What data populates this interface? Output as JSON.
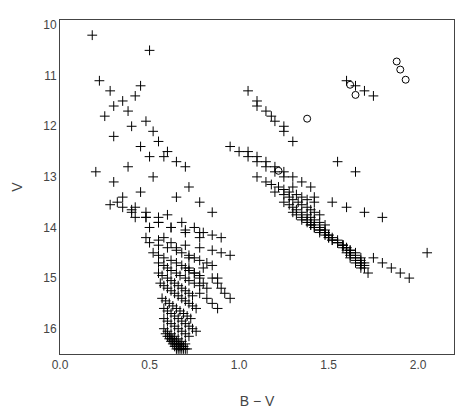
{
  "chart_data": {
    "type": "scatter",
    "xlabel": "B − V",
    "ylabel": "V",
    "xlim": [
      0.0,
      2.2
    ],
    "ylim": [
      16.5,
      9.9
    ],
    "xticks": [
      {
        "value": 0.0,
        "label": "0.0"
      },
      0.5,
      {
        "value": 1.0,
        "label": "1.0"
      },
      1.5,
      {
        "value": 2.0,
        "label": "2.0"
      }
    ],
    "yticks": [
      10,
      11,
      12,
      13,
      14,
      15,
      16
    ],
    "grid": false,
    "series": [
      {
        "marker": "plus",
        "color": "black",
        "x": [
          0.18,
          0.5,
          0.22,
          0.28,
          0.35,
          0.38,
          0.25,
          0.3,
          0.42,
          0.45,
          0.48,
          0.52,
          0.3,
          0.4,
          0.45,
          0.5,
          0.55,
          0.6,
          0.65,
          0.7,
          0.2,
          0.3,
          0.38,
          0.45,
          0.52,
          0.58,
          0.65,
          0.72,
          0.78,
          0.85,
          0.28,
          0.35,
          0.42,
          0.48,
          0.55,
          0.6,
          0.68,
          0.75,
          0.8,
          0.32,
          0.4,
          0.48,
          0.55,
          0.62,
          0.7,
          0.78,
          0.4,
          0.48,
          0.55,
          0.62,
          0.7,
          0.78,
          0.85,
          0.9,
          0.48,
          0.55,
          0.62,
          0.7,
          0.78,
          0.85,
          0.9,
          0.95,
          0.5,
          0.55,
          0.6,
          0.65,
          0.68,
          0.72,
          0.75,
          0.78,
          0.82,
          0.85,
          0.52,
          0.55,
          0.58,
          0.62,
          0.65,
          0.68,
          0.7,
          0.72,
          0.75,
          0.78,
          0.55,
          0.58,
          0.6,
          0.62,
          0.65,
          0.67,
          0.7,
          0.72,
          0.75,
          0.78,
          0.55,
          0.57,
          0.6,
          0.62,
          0.64,
          0.66,
          0.68,
          0.7,
          0.72,
          0.74,
          0.56,
          0.58,
          0.6,
          0.62,
          0.64,
          0.66,
          0.68,
          0.7,
          0.72,
          0.74,
          0.76,
          0.57,
          0.59,
          0.61,
          0.63,
          0.65,
          0.67,
          0.69,
          0.71,
          0.73,
          0.58,
          0.6,
          0.62,
          0.64,
          0.66,
          0.68,
          0.7,
          0.72,
          0.74,
          0.76,
          0.58,
          0.6,
          0.62,
          0.64,
          0.66,
          0.68,
          0.7,
          0.72,
          0.58,
          0.6,
          0.62,
          0.64,
          0.66,
          0.68,
          0.7,
          0.59,
          0.61,
          0.63,
          0.65,
          0.67,
          0.69,
          0.71,
          0.6,
          0.62,
          0.64,
          0.66,
          0.68,
          0.7,
          0.61,
          0.63,
          0.65,
          0.67,
          0.69,
          0.62,
          0.64,
          0.66,
          0.68,
          0.63,
          0.65,
          0.67,
          0.64,
          0.66,
          0.65,
          0.72,
          0.75,
          0.78,
          0.8,
          0.82,
          0.78,
          0.82,
          0.85,
          0.88,
          0.85,
          0.88,
          0.9,
          0.92,
          0.95,
          0.35,
          0.42,
          0.5,
          0.58,
          0.65,
          0.72,
          0.8,
          0.88,
          1.05,
          1.1,
          1.15,
          1.2,
          1.25,
          1.3,
          1.05,
          1.1,
          1.15,
          1.2,
          1.25,
          1.3,
          1.35,
          1.4,
          1.1,
          1.15,
          1.18,
          1.22,
          1.25,
          1.28,
          1.32,
          1.35,
          1.38,
          1.42,
          1.2,
          1.25,
          1.28,
          1.3,
          1.33,
          1.35,
          1.38,
          1.4,
          1.42,
          1.45,
          1.25,
          1.28,
          1.3,
          1.32,
          1.35,
          1.38,
          1.4,
          1.42,
          1.45,
          1.48,
          1.3,
          1.32,
          1.35,
          1.38,
          1.4,
          1.42,
          1.45,
          1.48,
          1.35,
          1.38,
          1.4,
          1.42,
          1.45,
          1.48,
          1.5,
          1.4,
          1.42,
          1.45,
          1.48,
          1.5,
          1.52,
          1.55,
          1.45,
          1.48,
          1.5,
          1.52,
          1.55,
          1.58,
          1.5,
          1.52,
          1.55,
          1.58,
          1.6,
          1.62,
          1.55,
          1.58,
          1.6,
          1.62,
          1.65,
          1.58,
          1.6,
          1.62,
          1.65,
          1.68,
          1.6,
          1.62,
          1.65,
          1.68,
          1.7,
          1.62,
          1.65,
          1.68,
          1.7,
          1.65,
          1.68,
          1.7,
          1.68,
          1.72,
          1.6,
          1.65,
          1.7,
          1.75,
          1.3,
          1.42,
          1.52,
          1.6,
          1.7,
          1.8,
          1.75,
          1.8,
          1.85,
          1.9,
          1.95,
          2.05,
          1.55,
          1.65,
          1.1,
          1.18,
          1.25,
          0.95,
          1.0,
          1.05,
          1.1,
          1.15,
          1.2,
          1.25
        ],
        "values": [
          10.2,
          10.5,
          11.1,
          11.3,
          11.5,
          11.7,
          11.8,
          11.6,
          11.4,
          11.2,
          11.9,
          12.1,
          12.2,
          12.0,
          12.4,
          12.6,
          12.3,
          12.5,
          12.7,
          12.8,
          12.9,
          13.1,
          12.8,
          13.3,
          13.0,
          12.6,
          13.4,
          13.2,
          13.5,
          13.7,
          13.55,
          13.4,
          13.6,
          13.7,
          13.8,
          13.75,
          13.9,
          14.0,
          14.1,
          13.5,
          13.65,
          13.8,
          13.9,
          14.0,
          14.1,
          14.2,
          13.7,
          13.8,
          13.9,
          14.0,
          14.05,
          14.1,
          14.15,
          14.2,
          14.2,
          14.25,
          14.3,
          14.35,
          14.4,
          14.45,
          14.5,
          14.55,
          14.3,
          14.35,
          14.4,
          14.45,
          14.5,
          14.55,
          14.6,
          14.65,
          14.7,
          14.75,
          14.5,
          14.55,
          14.6,
          14.65,
          14.7,
          14.75,
          14.8,
          14.85,
          14.9,
          14.95,
          14.7,
          14.75,
          14.8,
          14.85,
          14.9,
          14.95,
          15.0,
          15.05,
          15.1,
          15.15,
          14.9,
          14.95,
          15.0,
          15.05,
          15.1,
          15.15,
          15.2,
          15.25,
          15.3,
          15.35,
          15.1,
          15.15,
          15.2,
          15.25,
          15.3,
          15.35,
          15.4,
          15.45,
          15.5,
          15.55,
          15.6,
          15.4,
          15.45,
          15.5,
          15.55,
          15.6,
          15.65,
          15.7,
          15.75,
          15.8,
          15.6,
          15.65,
          15.7,
          15.75,
          15.8,
          15.85,
          15.9,
          15.95,
          16.0,
          16.05,
          15.8,
          15.85,
          15.9,
          15.95,
          16.0,
          16.05,
          16.1,
          16.15,
          16.0,
          16.05,
          16.1,
          16.15,
          16.2,
          16.25,
          16.3,
          16.1,
          16.15,
          16.2,
          16.25,
          16.3,
          16.35,
          16.4,
          16.15,
          16.2,
          16.25,
          16.3,
          16.35,
          16.4,
          16.2,
          16.25,
          16.3,
          16.35,
          16.4,
          16.25,
          16.3,
          16.35,
          16.4,
          16.3,
          16.35,
          16.4,
          16.35,
          16.4,
          16.4,
          14.8,
          14.9,
          15.0,
          15.1,
          15.2,
          15.3,
          15.4,
          15.5,
          15.6,
          15.0,
          15.1,
          15.2,
          15.3,
          15.4,
          13.6,
          13.8,
          14.0,
          14.2,
          14.4,
          14.6,
          14.8,
          15.0,
          11.3,
          11.5,
          11.7,
          11.9,
          12.1,
          12.3,
          12.5,
          12.6,
          12.7,
          12.8,
          12.9,
          13.0,
          13.1,
          13.2,
          13.0,
          13.1,
          13.15,
          13.2,
          13.25,
          13.3,
          13.35,
          13.4,
          13.45,
          13.5,
          13.3,
          13.35,
          13.4,
          13.45,
          13.5,
          13.55,
          13.6,
          13.65,
          13.7,
          13.75,
          13.5,
          13.55,
          13.6,
          13.65,
          13.7,
          13.75,
          13.8,
          13.85,
          13.9,
          13.95,
          13.7,
          13.75,
          13.8,
          13.85,
          13.9,
          13.95,
          14.0,
          14.05,
          13.85,
          13.9,
          13.95,
          14.0,
          14.05,
          14.1,
          14.15,
          13.95,
          14.0,
          14.05,
          14.1,
          14.15,
          14.2,
          14.25,
          14.1,
          14.15,
          14.2,
          14.25,
          14.3,
          14.35,
          14.2,
          14.25,
          14.3,
          14.35,
          14.4,
          14.45,
          14.3,
          14.35,
          14.4,
          14.45,
          14.5,
          14.4,
          14.45,
          14.5,
          14.55,
          14.6,
          14.5,
          14.55,
          14.6,
          14.65,
          14.7,
          14.6,
          14.65,
          14.7,
          14.75,
          14.7,
          14.75,
          14.8,
          14.8,
          14.9,
          11.1,
          11.2,
          11.3,
          11.4,
          13.2,
          13.4,
          13.5,
          13.6,
          13.7,
          13.8,
          14.6,
          14.7,
          14.8,
          14.9,
          15.0,
          14.5,
          12.7,
          12.9,
          11.6,
          11.8,
          12.0,
          12.4,
          12.5,
          12.6,
          12.7,
          12.8,
          12.9,
          13.0
        ]
      },
      {
        "marker": "open circle",
        "color": "black",
        "x": [
          1.88,
          1.9,
          1.93,
          1.62,
          1.65,
          1.38,
          1.22
        ],
        "values": [
          10.72,
          10.88,
          11.08,
          11.18,
          11.38,
          11.85,
          12.88
        ]
      }
    ]
  }
}
